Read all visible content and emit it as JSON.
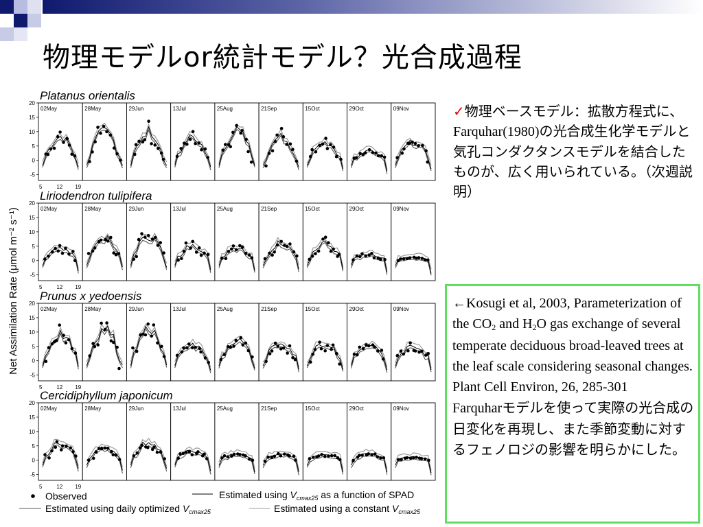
{
  "slide": {
    "title": "物理モデルor統計モデル？光合成過程",
    "bullet": {
      "mark": "✓",
      "text_a": "物理ベースモデル：拡散方程式に、",
      "text_b": "Farquhar(1980)",
      "text_c": "の光合成生化学モデルと気孔コンダクタンスモデルを結合したものが、広く用いられている。（次週説明）"
    },
    "reference": {
      "line1": "←Kosugi et al, 2003, Parameterization of the CO",
      "sub1": "2",
      "line2": " and H",
      "sub2": "2",
      "line3": "O gas exchange of several temperate deciduous broad-leaved trees at the leaf scale considering seasonal changes. Plant Cell Environ, 26, 285-301",
      "line4_a": "Farquhar",
      "line4_b": "モデルを使って実際の光合成の日変化を再現し、また季節変動に対するフェノロジの影響を明らかにした。"
    }
  },
  "chart_data": {
    "type": "line",
    "ylabel": "Net Assimilation Rate (μmol m⁻² s⁻¹)",
    "y_ticks": [
      "20",
      "15",
      "10",
      "5",
      "0",
      "-5"
    ],
    "ylim": [
      -7,
      20
    ],
    "x_ticks": [
      "5",
      "12",
      "19"
    ],
    "dates": [
      "02May",
      "28May",
      "29Jun",
      "13Jul",
      "25Aug",
      "21Sep",
      "15Oct",
      "29Oct",
      "09Nov"
    ],
    "species": [
      {
        "name": "Platanus orientalis",
        "levels": [
          8,
          10,
          10,
          8,
          10,
          8,
          6,
          3,
          6
        ]
      },
      {
        "name": "Liriodendron tulipifera",
        "levels": [
          4,
          8,
          8,
          5,
          4,
          6,
          6,
          2,
          1
        ]
      },
      {
        "name": "Prunus x yedoensis",
        "levels": [
          9,
          11,
          11,
          5,
          7,
          6,
          6,
          5,
          5
        ]
      },
      {
        "name": "Cercidiphyllum japonicum",
        "levels": [
          6,
          4,
          6,
          3,
          2,
          2,
          2,
          2,
          1
        ]
      }
    ],
    "legend": {
      "observed": "Observed",
      "spad_pre": "Estimated using ",
      "spad_post": " as a function of SPAD",
      "daily_pre": "Estimated using daily optimized ",
      "constant_pre": "Estimated using a constant ",
      "vsym": "V",
      "vsub": "cmax25"
    },
    "colors": {
      "observed": "#000000",
      "spad": "#000000",
      "daily": "#555555",
      "constant": "#9a9a9a"
    }
  }
}
